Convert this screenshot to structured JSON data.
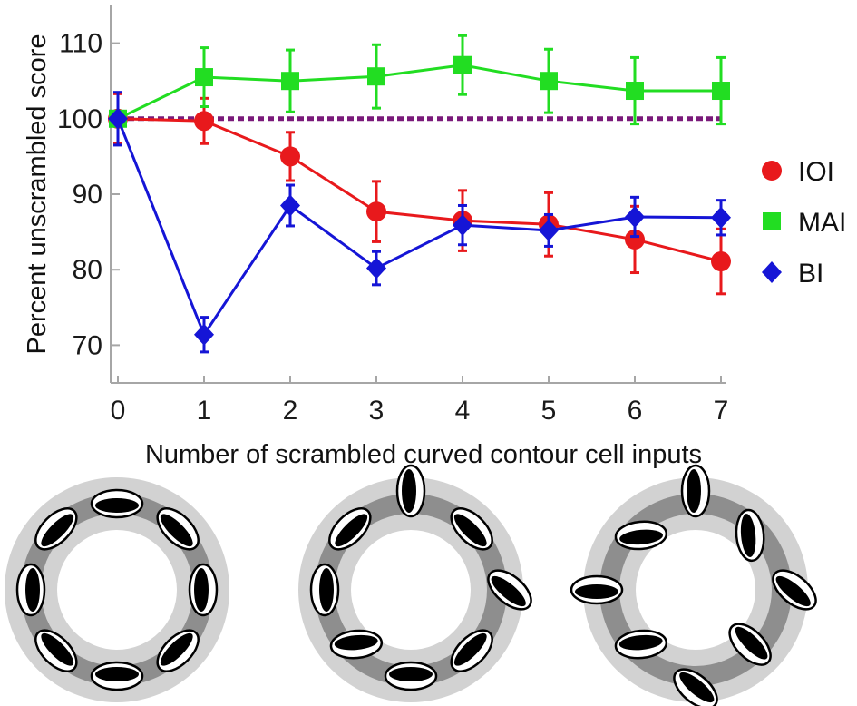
{
  "chart_data": {
    "type": "line",
    "xlabel": "Number of scrambled curved contour cell inputs",
    "ylabel": "Percent unscrambled score",
    "x": [
      0,
      1,
      2,
      3,
      4,
      5,
      6,
      7
    ],
    "xlim": [
      -0.15,
      7.1
    ],
    "ylim": [
      65,
      115
    ],
    "xticks": [
      0,
      1,
      2,
      3,
      4,
      5,
      6,
      7
    ],
    "yticks": [
      70,
      80,
      90,
      100,
      110
    ],
    "grid": false,
    "legend_position": "right",
    "reference_line": {
      "y": 100,
      "style": "dotted",
      "color": "#7a1a7a"
    },
    "series": [
      {
        "name": "IOI",
        "marker": "circle",
        "color": "#e8191c",
        "values": [
          100,
          99.7,
          95,
          87.7,
          86.5,
          86,
          84,
          81.1
        ],
        "errors": [
          3.3,
          3.0,
          3.2,
          4.0,
          4.0,
          4.2,
          4.4,
          4.3
        ]
      },
      {
        "name": "MAI",
        "marker": "square",
        "color": "#22dd22",
        "values": [
          100,
          105.5,
          105,
          105.6,
          107.1,
          105,
          103.7,
          103.7
        ],
        "errors": [
          0.6,
          3.9,
          4.1,
          4.2,
          3.9,
          4.2,
          4.4,
          4.4
        ]
      },
      {
        "name": "BI",
        "marker": "diamond",
        "color": "#1515d6",
        "values": [
          100,
          71.4,
          88.5,
          80.2,
          85.9,
          85.2,
          87,
          86.9
        ],
        "errors": [
          3.5,
          2.3,
          2.7,
          2.2,
          2.6,
          2.1,
          2.6,
          2.3
        ]
      }
    ]
  },
  "diagrams": [
    {
      "name": "ring-unscrambled",
      "angles": [
        90,
        45,
        0,
        -45,
        -90,
        -135,
        180,
        135
      ],
      "scrambled": []
    },
    {
      "name": "ring-partially-scrambled",
      "angles": [
        90,
        45,
        0,
        -45,
        -90,
        -135,
        180,
        135
      ],
      "scrambled": [
        0,
        2,
        5
      ]
    },
    {
      "name": "ring-fully-scrambled",
      "angles": [
        90,
        45,
        0,
        -45,
        -90,
        -135,
        180,
        135
      ],
      "scrambled": [
        0,
        1,
        2,
        3,
        4,
        5,
        6,
        7
      ]
    }
  ]
}
